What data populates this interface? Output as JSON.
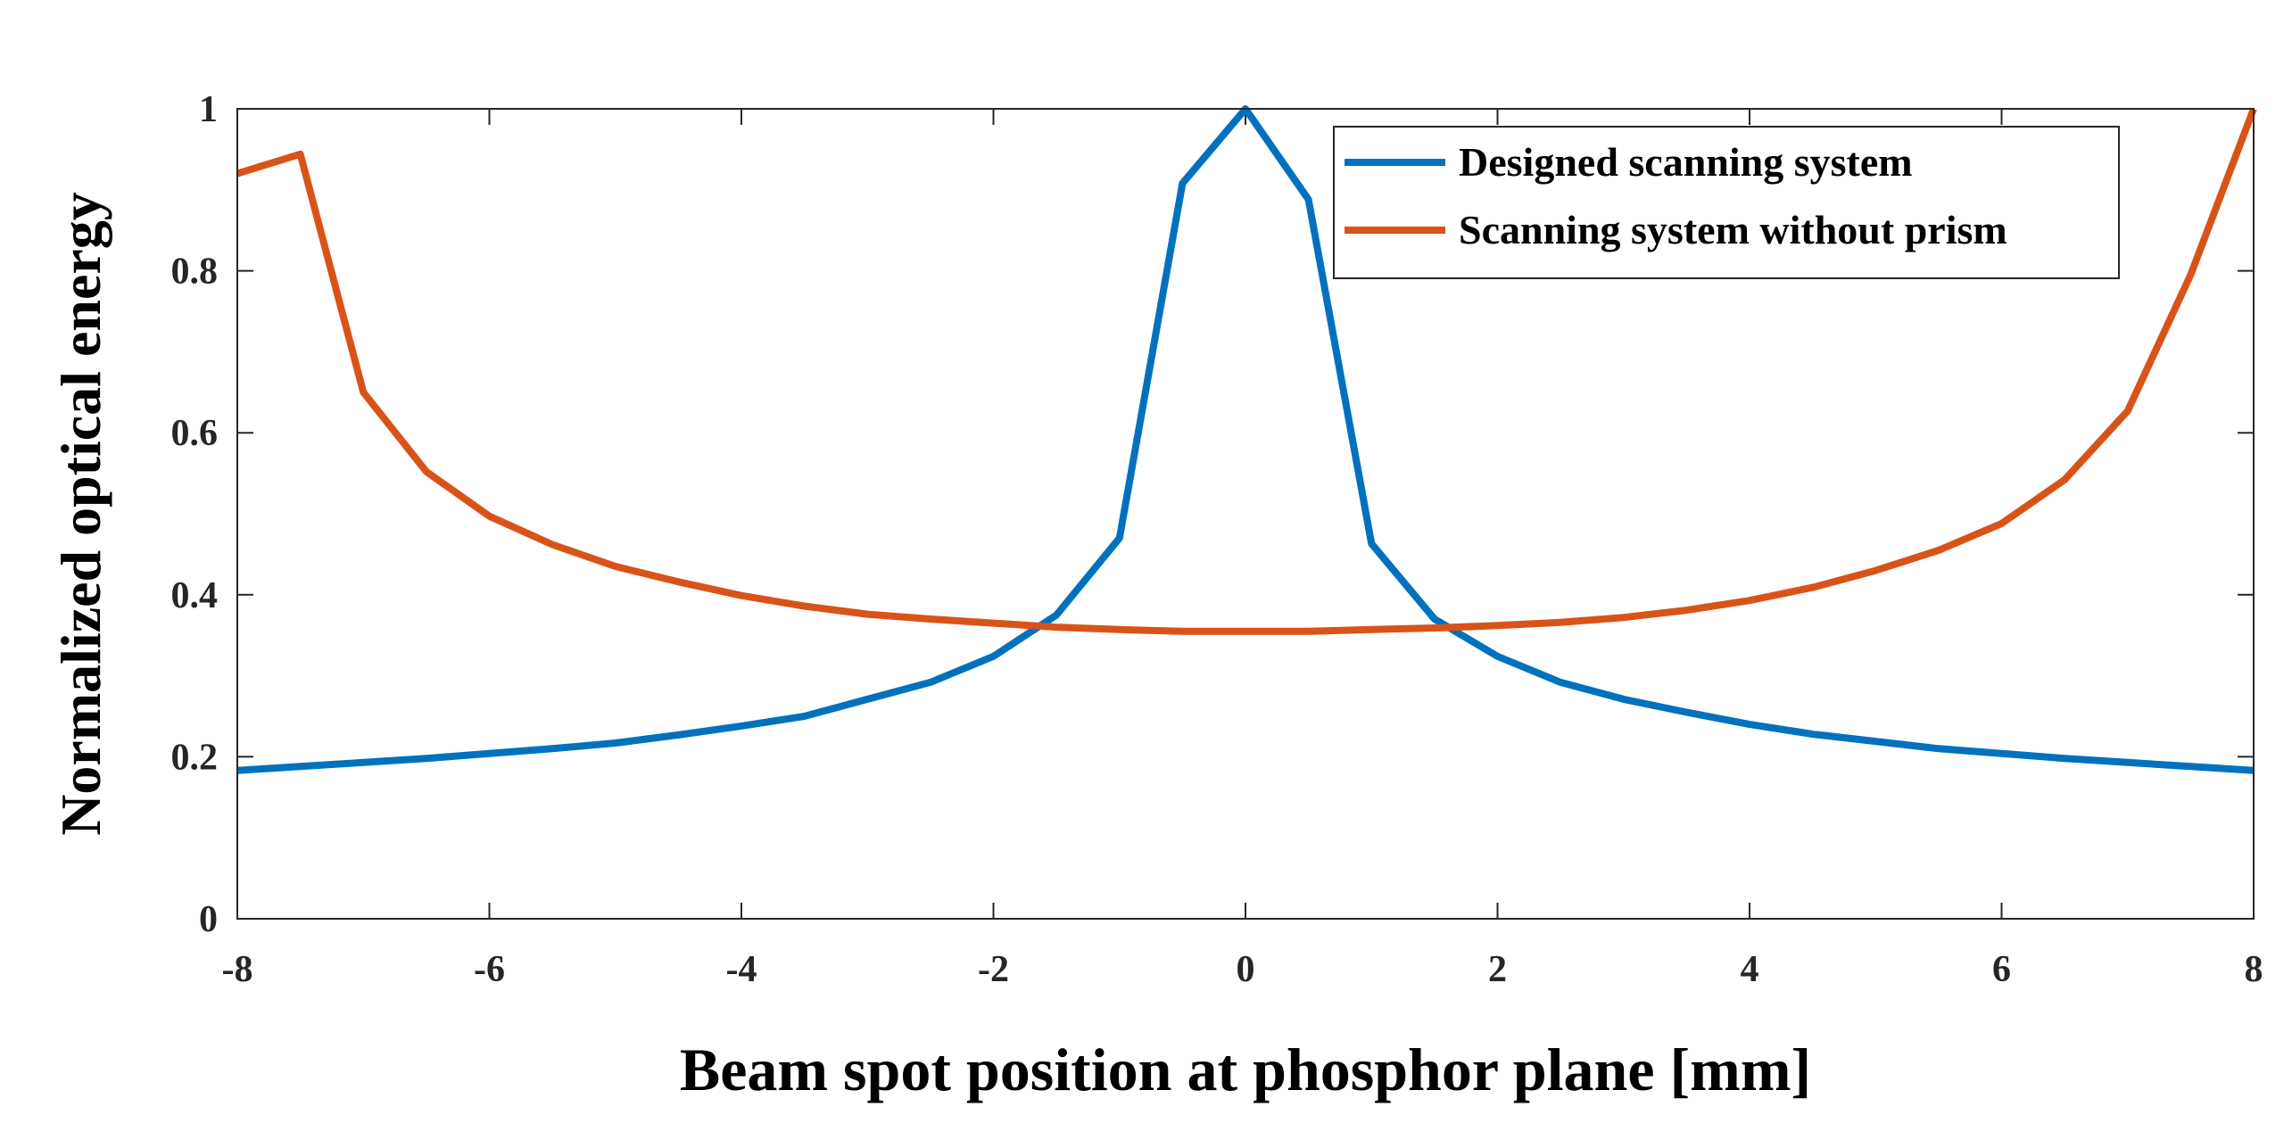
{
  "chart_data": {
    "type": "line",
    "title": "",
    "xlabel": "Beam spot position at phosphor plane [mm]",
    "ylabel": "Normalized optical energy",
    "xlim": [
      -8,
      8
    ],
    "ylim": [
      0,
      1
    ],
    "xticks": [
      "-8",
      "-6",
      "-4",
      "-2",
      "0",
      "2",
      "4",
      "6",
      "8"
    ],
    "yticks": [
      "0",
      "0.2",
      "0.4",
      "0.6",
      "0.8",
      "1"
    ],
    "legend_position": "top-right",
    "grid": false,
    "x": [
      -8,
      -7.5,
      -7,
      -6.5,
      -6,
      -5.5,
      -5,
      -4.5,
      -4,
      -3.5,
      -3,
      -2.5,
      -2,
      -1.5,
      -1,
      -0.5,
      0,
      0.5,
      1,
      1.5,
      2,
      2.5,
      3,
      3.5,
      4,
      4.5,
      5,
      5.5,
      6,
      6.5,
      7,
      7.5,
      8
    ],
    "series": [
      {
        "name": "Designed scanning system",
        "color": "#0072BD",
        "values": [
          0.183,
          0.188,
          0.193,
          0.198,
          0.204,
          0.21,
          0.217,
          0.227,
          0.238,
          0.25,
          0.271,
          0.292,
          0.324,
          0.375,
          0.47,
          0.908,
          1.0,
          0.888,
          0.463,
          0.37,
          0.324,
          0.292,
          0.271,
          0.255,
          0.24,
          0.228,
          0.219,
          0.21,
          0.204,
          0.198,
          0.193,
          0.188,
          0.183
        ]
      },
      {
        "name": "Scanning system without prism",
        "color": "#D95319",
        "values": [
          0.92,
          0.944,
          0.65,
          0.552,
          0.497,
          0.462,
          0.435,
          0.416,
          0.399,
          0.386,
          0.376,
          0.37,
          0.365,
          0.36,
          0.357,
          0.355,
          0.355,
          0.355,
          0.357,
          0.359,
          0.362,
          0.366,
          0.372,
          0.381,
          0.393,
          0.409,
          0.43,
          0.455,
          0.488,
          0.542,
          0.627,
          0.795,
          1.0
        ]
      }
    ]
  }
}
